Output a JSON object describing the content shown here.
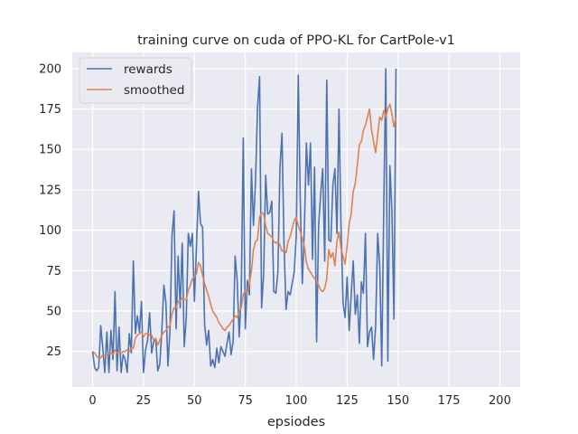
{
  "chart_data": {
    "type": "line",
    "title": "training curve on cuda of PPO-KL for CartPole-v1",
    "xlabel": "epsiodes",
    "ylabel": "",
    "xlim": [
      -10,
      210
    ],
    "ylim": [
      3,
      210
    ],
    "xticks": [
      0,
      25,
      50,
      75,
      100,
      125,
      150,
      175,
      200
    ],
    "yticks": [
      25,
      50,
      75,
      100,
      125,
      150,
      175,
      200
    ],
    "grid": true,
    "legend_position": "top-left",
    "background": "#eaeaf2",
    "series": [
      {
        "name": "rewards",
        "color": "#4c72b0",
        "values": [
          25,
          15,
          13,
          15,
          41,
          27,
          12,
          37,
          12,
          38,
          20,
          62,
          13,
          40,
          12,
          23,
          20,
          12,
          36,
          24,
          81,
          36,
          47,
          37,
          56,
          12,
          26,
          32,
          49,
          24,
          31,
          33,
          13,
          17,
          38,
          66,
          55,
          16,
          38,
          97,
          112,
          39,
          84,
          52,
          92,
          28,
          46,
          98,
          90,
          98,
          56,
          90,
          124,
          104,
          102,
          42,
          29,
          38,
          16,
          20,
          15,
          27,
          18,
          28,
          25,
          22,
          30,
          37,
          23,
          31,
          84,
          69,
          34,
          61,
          157,
          39,
          69,
          60,
          138,
          103,
          130,
          176,
          195,
          52,
          73,
          134,
          110,
          111,
          118,
          62,
          61,
          74,
          138,
          160,
          92,
          51,
          62,
          60,
          67,
          74,
          96,
          196,
          118,
          67,
          101,
          154,
          128,
          154,
          82,
          139,
          31,
          103,
          122,
          138,
          81,
          193,
          94,
          93,
          128,
          138,
          98,
          175,
          102,
          55,
          46,
          71,
          38,
          60,
          81,
          48,
          60,
          30,
          68,
          61,
          98,
          28,
          37,
          40,
          20,
          41,
          98,
          78,
          16,
          115,
          200,
          19,
          140,
          112,
          45,
          200
        ],
        "x_start": 0
      },
      {
        "name": "smoothed",
        "color": "#dd8452",
        "values": [
          25,
          24,
          22,
          21,
          21,
          23,
          23,
          23,
          24,
          24,
          23,
          26,
          24,
          25,
          24,
          25,
          25,
          26,
          25,
          27,
          27,
          33,
          35,
          36,
          37,
          34,
          36,
          36,
          35,
          35,
          32,
          33,
          29,
          32,
          35,
          37,
          38,
          40,
          41,
          48,
          52,
          52,
          56,
          56,
          58,
          57,
          57,
          63,
          66,
          70,
          71,
          73,
          80,
          78,
          72,
          67,
          63,
          59,
          54,
          50,
          48,
          46,
          43,
          41,
          39,
          38,
          40,
          41,
          43,
          45,
          47,
          46,
          50,
          52,
          60,
          63,
          62,
          67,
          75,
          88,
          93,
          94,
          108,
          111,
          110,
          103,
          98,
          97,
          96,
          93,
          92,
          93,
          91,
          87,
          88,
          86,
          93,
          96,
          101,
          106,
          108,
          103,
          99,
          95,
          90,
          80,
          76,
          74,
          72,
          70,
          69,
          66,
          63,
          62,
          64,
          70,
          88,
          83,
          86,
          78,
          93,
          99,
          89,
          84,
          79,
          90,
          104,
          110,
          124,
          129,
          140,
          153,
          155,
          162,
          165,
          170,
          175,
          162,
          155,
          148,
          159,
          170,
          168,
          174,
          170,
          175,
          178,
          172,
          164,
          170
        ],
        "x_start": 0
      }
    ]
  }
}
